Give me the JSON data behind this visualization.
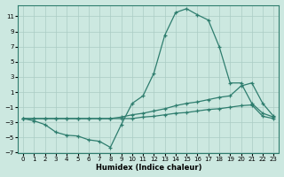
{
  "xlabel": "Humidex (Indice chaleur)",
  "background_color": "#cce8e0",
  "line_color": "#2e7d6e",
  "grid_color": "#aaccc4",
  "xlim": [
    -0.5,
    23.5
  ],
  "ylim": [
    -7,
    12.5
  ],
  "yticks": [
    -7,
    -5,
    -3,
    -1,
    1,
    3,
    5,
    7,
    9,
    11
  ],
  "xticks": [
    0,
    1,
    2,
    3,
    4,
    5,
    6,
    7,
    8,
    9,
    10,
    11,
    12,
    13,
    14,
    15,
    16,
    17,
    18,
    19,
    20,
    21,
    22,
    23
  ],
  "s1_x": [
    0,
    1,
    2,
    3,
    4,
    5,
    6,
    7,
    8,
    9,
    10,
    11,
    12,
    13,
    14,
    15,
    16,
    17,
    18,
    19,
    20,
    21,
    22,
    23
  ],
  "s1_y": [
    -2.5,
    -2.8,
    -3.3,
    -4.3,
    -4.7,
    -4.8,
    -5.3,
    -5.5,
    -6.3,
    -3.3,
    -0.5,
    0.5,
    3.5,
    8.5,
    11.5,
    12.0,
    11.2,
    10.5,
    7.0,
    2.2,
    2.2,
    -0.5,
    -1.8,
    -2.3
  ],
  "s2_x": [
    0,
    1,
    2,
    3,
    4,
    5,
    6,
    7,
    8,
    9,
    10,
    11,
    12,
    13,
    14,
    15,
    16,
    17,
    18,
    19,
    20,
    21,
    22,
    23
  ],
  "s2_y": [
    -2.5,
    -2.5,
    -2.5,
    -2.5,
    -2.5,
    -2.5,
    -2.5,
    -2.5,
    -2.5,
    -2.3,
    -2.0,
    -1.8,
    -1.5,
    -1.2,
    -0.8,
    -0.5,
    -0.3,
    0.0,
    0.3,
    0.5,
    1.8,
    2.2,
    -0.5,
    -2.2
  ],
  "s3_x": [
    0,
    1,
    2,
    3,
    4,
    5,
    6,
    7,
    8,
    9,
    10,
    11,
    12,
    13,
    14,
    15,
    16,
    17,
    18,
    19,
    20,
    21,
    22,
    23
  ],
  "s3_y": [
    -2.5,
    -2.5,
    -2.5,
    -2.5,
    -2.5,
    -2.5,
    -2.5,
    -2.5,
    -2.5,
    -2.5,
    -2.5,
    -2.3,
    -2.2,
    -2.0,
    -1.8,
    -1.7,
    -1.5,
    -1.3,
    -1.2,
    -1.0,
    -0.8,
    -0.7,
    -2.2,
    -2.5
  ]
}
